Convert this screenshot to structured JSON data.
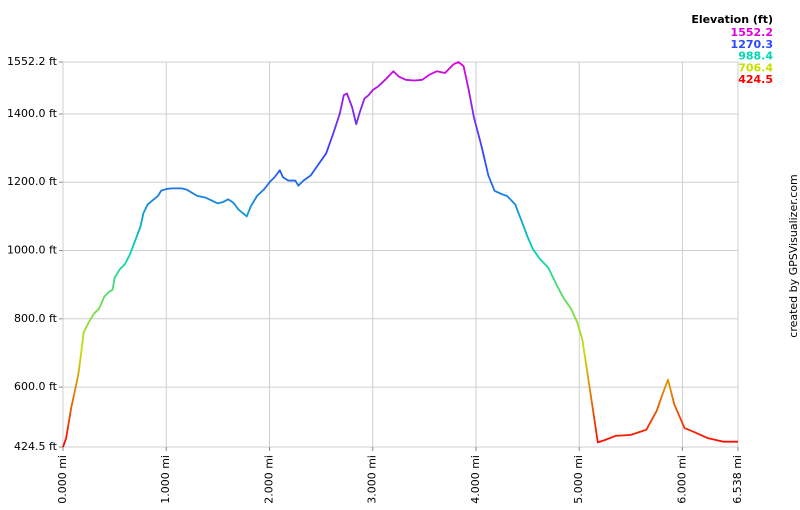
{
  "chart_data": {
    "type": "line",
    "legend_title": "Elevation (ft)",
    "credit": "created by GPSVisualizer.com",
    "color_scale": [
      {
        "value": 1552.2,
        "color": "#e000e0"
      },
      {
        "value": 1270.3,
        "color": "#2a48ff"
      },
      {
        "value": 988.4,
        "color": "#00d8b0"
      },
      {
        "value": 706.4,
        "color": "#c8e000"
      },
      {
        "value": 424.5,
        "color": "#ff0000"
      }
    ],
    "x": [
      0.0,
      0.03,
      0.08,
      0.13,
      0.15,
      0.18,
      0.2,
      0.25,
      0.3,
      0.35,
      0.4,
      0.45,
      0.48,
      0.5,
      0.55,
      0.6,
      0.65,
      0.7,
      0.75,
      0.78,
      0.82,
      0.88,
      0.92,
      0.95,
      1.0,
      1.05,
      1.15,
      1.2,
      1.3,
      1.38,
      1.45,
      1.5,
      1.55,
      1.6,
      1.65,
      1.7,
      1.78,
      1.82,
      1.88,
      1.95,
      2.0,
      2.05,
      2.1,
      2.13,
      2.18,
      2.25,
      2.28,
      2.33,
      2.4,
      2.48,
      2.55,
      2.62,
      2.68,
      2.72,
      2.75,
      2.8,
      2.84,
      2.88,
      2.92,
      2.96,
      3.0,
      3.05,
      3.12,
      3.2,
      3.25,
      3.32,
      3.4,
      3.48,
      3.55,
      3.62,
      3.7,
      3.78,
      3.83,
      3.88,
      3.93,
      3.98,
      4.05,
      4.12,
      4.18,
      4.25,
      4.3,
      4.38,
      4.45,
      4.5,
      4.55,
      4.62,
      4.7,
      4.78,
      4.85,
      4.92,
      4.98,
      5.03,
      5.08,
      5.12,
      5.18,
      5.25,
      5.35,
      5.5,
      5.65,
      5.75,
      5.82,
      5.86,
      5.92,
      6.02,
      6.1,
      6.25,
      6.4,
      6.538
    ],
    "values": [
      424.5,
      450,
      540,
      610,
      640,
      710,
      760,
      790,
      815,
      830,
      865,
      880,
      885,
      920,
      945,
      960,
      990,
      1030,
      1070,
      1110,
      1135,
      1150,
      1160,
      1175,
      1180,
      1182,
      1182,
      1178,
      1160,
      1155,
      1145,
      1138,
      1142,
      1150,
      1140,
      1120,
      1100,
      1130,
      1160,
      1180,
      1200,
      1215,
      1235,
      1215,
      1205,
      1205,
      1190,
      1205,
      1220,
      1255,
      1285,
      1345,
      1400,
      1455,
      1460,
      1420,
      1370,
      1410,
      1445,
      1455,
      1470,
      1480,
      1500,
      1525,
      1510,
      1500,
      1498,
      1500,
      1515,
      1525,
      1520,
      1545,
      1552.2,
      1540,
      1470,
      1390,
      1310,
      1220,
      1175,
      1165,
      1160,
      1135,
      1080,
      1040,
      1005,
      975,
      950,
      900,
      860,
      830,
      790,
      740,
      640,
      560,
      438,
      445,
      457,
      460,
      475,
      530,
      590,
      622,
      550,
      480,
      470,
      450,
      440,
      440
    ],
    "xlim": [
      0,
      6.538
    ],
    "ylim": [
      424.5,
      1552.2
    ],
    "xticks": [
      {
        "value": 0,
        "label": "0.000 mi"
      },
      {
        "value": 1,
        "label": "1.000 mi"
      },
      {
        "value": 2,
        "label": "2.000 mi"
      },
      {
        "value": 3,
        "label": "3.000 mi"
      },
      {
        "value": 4,
        "label": "4.000 mi"
      },
      {
        "value": 5,
        "label": "5.000 mi"
      },
      {
        "value": 6,
        "label": "6.000 mi"
      },
      {
        "value": 6.538,
        "label": "6.538 mi"
      }
    ],
    "yticks": [
      {
        "value": 424.5,
        "label": "424.5 ft"
      },
      {
        "value": 600,
        "label": "600.0 ft"
      },
      {
        "value": 800,
        "label": "800.0 ft"
      },
      {
        "value": 1000,
        "label": "1000.0 ft"
      },
      {
        "value": 1200,
        "label": "1200.0 ft"
      },
      {
        "value": 1400,
        "label": "1400.0 ft"
      },
      {
        "value": 1552.2,
        "label": "1552.2 ft"
      }
    ],
    "grid": true
  }
}
